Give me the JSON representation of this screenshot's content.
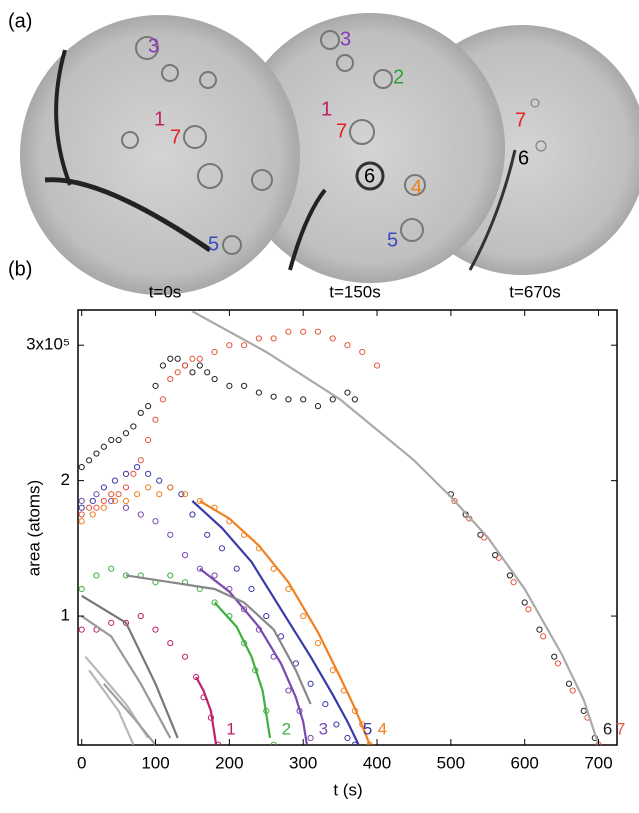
{
  "panel_a": {
    "label": "(a)",
    "frames": [
      {
        "time": "t=0s",
        "labels": [
          "3",
          "1",
          "7",
          "5"
        ]
      },
      {
        "time": "t=150s",
        "labels": [
          "3",
          "2",
          "1",
          "7",
          "6",
          "4",
          "5"
        ]
      },
      {
        "time": "t=670s",
        "labels": [
          "7",
          "6"
        ]
      }
    ]
  },
  "chart_data": {
    "type": "scatter",
    "panel_label": "(b)",
    "xlabel": "t (s)",
    "ylabel": "area (atoms)",
    "xlim": [
      -5,
      725
    ],
    "ylim": [
      0.048,
      3.26
    ],
    "xticks": [
      0,
      100,
      200,
      300,
      400,
      500,
      600,
      700
    ],
    "yticks": [
      1,
      2,
      {
        "value": 3,
        "label": "3x10⁵"
      }
    ],
    "series": [
      {
        "name": "1",
        "color": "#c0206a",
        "mode": "markers",
        "x": [
          0,
          20,
          40,
          60,
          80,
          100,
          120,
          140,
          155,
          165,
          175,
          185
        ],
        "values": [
          0.9,
          0.9,
          0.95,
          0.95,
          1.0,
          0.9,
          0.8,
          0.7,
          0.55,
          0.4,
          0.25,
          0.05
        ]
      },
      {
        "color": "#c0206a",
        "mode": "line",
        "x": [
          155,
          165,
          175,
          182
        ],
        "values": [
          0.55,
          0.45,
          0.3,
          0.05
        ]
      },
      {
        "name": "2",
        "color": "#40b040",
        "mode": "markers",
        "x": [
          0,
          20,
          40,
          60,
          80,
          100,
          120,
          140,
          160,
          180,
          200,
          220,
          235,
          250,
          260
        ],
        "values": [
          1.2,
          1.3,
          1.35,
          1.3,
          1.3,
          1.25,
          1.3,
          1.25,
          1.2,
          1.1,
          1.0,
          0.8,
          0.6,
          0.3,
          0.05
        ]
      },
      {
        "color": "#40b040",
        "mode": "line",
        "x": [
          180,
          210,
          230,
          245,
          255
        ],
        "values": [
          1.1,
          0.92,
          0.7,
          0.45,
          0.1
        ]
      },
      {
        "name": "3",
        "color": "#7a4ab0",
        "mode": "markers",
        "x": [
          0,
          20,
          40,
          60,
          80,
          100,
          120,
          140,
          160,
          180,
          200,
          220,
          240,
          260,
          280,
          295,
          310
        ],
        "values": [
          1.85,
          1.9,
          1.85,
          1.8,
          1.75,
          1.7,
          1.6,
          1.45,
          1.35,
          1.3,
          1.2,
          1.05,
          0.9,
          0.7,
          0.45,
          0.3,
          0.1
        ]
      },
      {
        "color": "#7a4ab0",
        "mode": "line",
        "x": [
          160,
          200,
          240,
          270,
          290,
          300,
          305
        ],
        "values": [
          1.35,
          1.18,
          0.92,
          0.65,
          0.4,
          0.22,
          0.05
        ]
      },
      {
        "name": "5",
        "color": "#3a3aa8",
        "mode": "markers",
        "x": [
          0,
          15,
          30,
          45,
          60,
          75,
          90,
          105,
          120,
          135,
          150,
          170,
          190,
          210,
          230,
          250,
          270,
          290,
          310,
          330,
          345,
          360,
          370
        ],
        "values": [
          1.8,
          1.85,
          1.95,
          2.0,
          2.05,
          2.1,
          2.05,
          2.0,
          1.95,
          1.9,
          1.75,
          1.6,
          1.5,
          1.35,
          1.2,
          1.0,
          0.85,
          0.65,
          0.5,
          0.35,
          0.2,
          0.1,
          0.05
        ]
      },
      {
        "color": "#3a3aa8",
        "mode": "line",
        "x": [
          150,
          190,
          230,
          270,
          310,
          340,
          360,
          375
        ],
        "values": [
          1.85,
          1.65,
          1.4,
          1.05,
          0.7,
          0.42,
          0.22,
          0.05
        ]
      },
      {
        "name": "4",
        "color": "#f08020",
        "mode": "markers",
        "x": [
          0,
          15,
          30,
          45,
          60,
          75,
          90,
          105,
          120,
          140,
          160,
          180,
          200,
          220,
          240,
          260,
          280,
          300,
          320,
          340,
          355,
          370,
          380,
          390
        ],
        "values": [
          1.7,
          1.75,
          1.8,
          1.85,
          1.85,
          1.9,
          1.95,
          1.9,
          1.95,
          1.9,
          1.85,
          1.8,
          1.7,
          1.6,
          1.5,
          1.35,
          1.2,
          1.0,
          0.8,
          0.6,
          0.45,
          0.3,
          0.2,
          0.05
        ]
      },
      {
        "color": "#f08020",
        "mode": "line",
        "x": [
          160,
          200,
          240,
          280,
          320,
          350,
          370,
          385,
          390
        ],
        "values": [
          1.85,
          1.72,
          1.52,
          1.25,
          0.88,
          0.55,
          0.32,
          0.12,
          0.05
        ]
      },
      {
        "name": "6",
        "color": "#222222",
        "mode": "markers",
        "x": [
          0,
          10,
          20,
          30,
          40,
          50,
          60,
          70,
          80,
          90,
          100,
          110,
          120,
          130,
          140,
          150,
          160,
          170,
          180,
          200,
          220,
          240,
          260,
          280,
          300,
          320,
          340,
          360,
          370,
          500,
          520,
          540,
          560,
          580,
          600,
          620,
          640,
          660,
          680,
          695
        ],
        "values": [
          2.1,
          2.15,
          2.2,
          2.25,
          2.3,
          2.3,
          2.35,
          2.4,
          2.5,
          2.55,
          2.7,
          2.85,
          2.9,
          2.9,
          2.85,
          2.8,
          2.85,
          2.8,
          2.75,
          2.7,
          2.7,
          2.65,
          2.62,
          2.6,
          2.6,
          2.55,
          2.6,
          2.65,
          2.6,
          1.9,
          1.75,
          1.6,
          1.45,
          1.3,
          1.1,
          0.9,
          0.7,
          0.5,
          0.3,
          0.1
        ]
      },
      {
        "name": "7",
        "color": "#e8553a",
        "mode": "markers",
        "x": [
          0,
          10,
          20,
          30,
          40,
          50,
          60,
          70,
          80,
          90,
          100,
          110,
          120,
          130,
          140,
          150,
          160,
          180,
          200,
          220,
          240,
          260,
          280,
          300,
          320,
          340,
          360,
          380,
          400,
          505,
          525,
          545,
          565,
          585,
          605,
          625,
          645,
          665,
          685,
          700
        ],
        "values": [
          1.75,
          1.8,
          1.8,
          1.85,
          1.9,
          1.9,
          1.95,
          2.05,
          2.15,
          2.3,
          2.45,
          2.6,
          2.75,
          2.8,
          2.85,
          2.9,
          2.9,
          2.95,
          3.0,
          3.0,
          3.05,
          3.05,
          3.1,
          3.1,
          3.1,
          3.05,
          3.0,
          2.95,
          2.85,
          1.85,
          1.72,
          1.58,
          1.43,
          1.25,
          1.05,
          0.85,
          0.65,
          0.45,
          0.25,
          0.05
        ]
      },
      {
        "color": "#aaaaaa",
        "mode": "line",
        "x": [
          150,
          250,
          350,
          450,
          500,
          550,
          600,
          650,
          680,
          700
        ],
        "values": [
          3.25,
          2.95,
          2.6,
          2.15,
          1.88,
          1.58,
          1.2,
          0.72,
          0.38,
          0.05
        ]
      },
      {
        "color": "#888888",
        "mode": "line",
        "x": [
          60,
          120,
          180,
          220,
          260,
          290,
          310
        ],
        "values": [
          1.3,
          1.25,
          1.2,
          1.1,
          0.9,
          0.6,
          0.35
        ]
      },
      {
        "color": "#777777",
        "mode": "line",
        "x": [
          0,
          60,
          100,
          130
        ],
        "values": [
          1.15,
          0.95,
          0.5,
          0.1
        ]
      },
      {
        "color": "#999999",
        "mode": "line",
        "x": [
          0,
          40,
          80,
          120
        ],
        "values": [
          1.0,
          0.85,
          0.5,
          0.1
        ]
      },
      {
        "color": "#b8b8b8",
        "mode": "line",
        "x": [
          5,
          60,
          90
        ],
        "values": [
          0.7,
          0.35,
          0.1
        ]
      },
      {
        "color": "#b8b8b8",
        "mode": "line",
        "x": [
          10,
          50,
          70
        ],
        "values": [
          0.6,
          0.3,
          0.05
        ]
      },
      {
        "color": "#a0a0a0",
        "mode": "line",
        "x": [
          30,
          70,
          100
        ],
        "values": [
          0.5,
          0.25,
          0.05
        ]
      }
    ]
  }
}
